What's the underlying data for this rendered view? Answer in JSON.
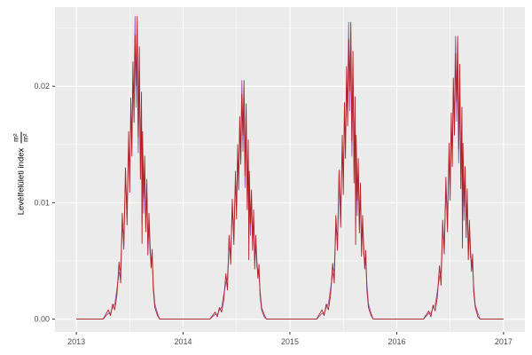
{
  "chart_data": {
    "type": "line",
    "title": "",
    "xlabel": "",
    "ylabel_text": "Levélfelületi index",
    "ylabel_fraction_numerator": "m²",
    "ylabel_fraction_denominator": "m²",
    "legend_position": "none",
    "grid": true,
    "xlim": [
      2012.8,
      2017.2
    ],
    "ylim": [
      -0.0011,
      0.0268
    ],
    "x_ticks": {
      "values": [
        2013,
        2014,
        2015,
        2016,
        2017
      ],
      "labels": [
        "2013",
        "2014",
        "2015",
        "2016",
        "2017"
      ]
    },
    "y_ticks": {
      "values": [
        0,
        0.01,
        0.02
      ],
      "labels": [
        "0.00",
        "0.01",
        "0.02"
      ]
    },
    "x_minor": [
      2013.5,
      2014.5,
      2015.5,
      2016.5
    ],
    "y_minor": [
      0.005,
      0.015,
      0.025
    ],
    "colors": {
      "figure_background": "#FFFFFF",
      "panel_background": "#EBEBEB",
      "grid": "#FFFFFF",
      "tick_label": "#4D4D4D",
      "tick_mark": "#333333",
      "axis_title": "#000000"
    },
    "x": [
      2013,
      2013.25,
      2013.3,
      2013.32,
      2013.34,
      2013.36,
      2013.38,
      2013.4,
      2013.415,
      2013.43,
      2013.445,
      2013.46,
      2013.475,
      2013.49,
      2013.5,
      2013.51,
      2013.52,
      2013.53,
      2013.54,
      2013.55,
      2013.56,
      2013.57,
      2013.58,
      2013.59,
      2013.6,
      2013.61,
      2013.615,
      2013.62,
      2013.63,
      2013.64,
      2013.65,
      2013.66,
      2013.67,
      2013.68,
      2013.69,
      2013.7,
      2013.71,
      2013.72,
      2013.735,
      2013.76,
      2013.78,
      2014,
      2014.25,
      2014.3,
      2014.32,
      2014.34,
      2014.36,
      2014.38,
      2014.4,
      2014.415,
      2014.43,
      2014.445,
      2014.46,
      2014.475,
      2014.49,
      2014.5,
      2014.51,
      2014.52,
      2014.53,
      2014.54,
      2014.55,
      2014.56,
      2014.57,
      2014.58,
      2014.59,
      2014.6,
      2014.61,
      2014.615,
      2014.62,
      2014.63,
      2014.64,
      2014.65,
      2014.66,
      2014.67,
      2014.68,
      2014.69,
      2014.7,
      2014.71,
      2014.72,
      2014.735,
      2014.76,
      2014.78,
      2015,
      2015.25,
      2015.3,
      2015.32,
      2015.34,
      2015.36,
      2015.38,
      2015.4,
      2015.415,
      2015.43,
      2015.445,
      2015.46,
      2015.475,
      2015.49,
      2015.5,
      2015.51,
      2015.52,
      2015.53,
      2015.54,
      2015.55,
      2015.56,
      2015.57,
      2015.58,
      2015.59,
      2015.6,
      2015.61,
      2015.615,
      2015.62,
      2015.63,
      2015.64,
      2015.65,
      2015.66,
      2015.67,
      2015.68,
      2015.69,
      2015.7,
      2015.71,
      2015.72,
      2015.735,
      2015.76,
      2015.78,
      2016,
      2016.25,
      2016.3,
      2016.32,
      2016.34,
      2016.36,
      2016.38,
      2016.4,
      2016.415,
      2016.43,
      2016.445,
      2016.46,
      2016.475,
      2016.49,
      2016.5,
      2016.51,
      2016.52,
      2016.53,
      2016.54,
      2016.55,
      2016.56,
      2016.57,
      2016.58,
      2016.59,
      2016.6,
      2016.61,
      2016.615,
      2016.62,
      2016.63,
      2016.64,
      2016.65,
      2016.66,
      2016.67,
      2016.68,
      2016.69,
      2016.7,
      2016.71,
      2016.72,
      2016.735,
      2016.76,
      2016.78,
      2017
    ],
    "series": [
      {
        "name": "series-purple",
        "color": "#9355B0",
        "values": [
          0,
          0,
          0.0005,
          0.0005,
          0.001,
          0.0013,
          0.0026,
          0.0039,
          0.0044,
          0.0078,
          0.0073,
          0.0117,
          0.0099,
          0.0148,
          0.0125,
          0.0177,
          0.0156,
          0.0208,
          0.0187,
          0.026,
          0.0182,
          0.0239,
          0.0143,
          0.0213,
          0.0135,
          0.0182,
          0.0083,
          0.0148,
          0.0091,
          0.013,
          0.0086,
          0.0109,
          0.0065,
          0.0081,
          0.0057,
          0.0052,
          0.0049,
          0.0031,
          0.0013,
          0.0005,
          0,
          0,
          0,
          0.0004,
          0.0004,
          0.0008,
          0.001,
          0.0021,
          0.0031,
          0.0035,
          0.0062,
          0.0057,
          0.0092,
          0.0078,
          0.0117,
          0.0098,
          0.0139,
          0.0123,
          0.0164,
          0.0148,
          0.0205,
          0.0144,
          0.0189,
          0.0113,
          0.0168,
          0.0107,
          0.0144,
          0.0066,
          0.0117,
          0.0072,
          0.0103,
          0.0068,
          0.0086,
          0.0051,
          0.0064,
          0.0045,
          0.0041,
          0.0039,
          0.0025,
          0.001,
          0.0004,
          0,
          0,
          0,
          0.0005,
          0.0005,
          0.001,
          0.0013,
          0.0026,
          0.0038,
          0.0043,
          0.0077,
          0.0071,
          0.0115,
          0.0097,
          0.0145,
          0.0122,
          0.0173,
          0.0153,
          0.0204,
          0.0184,
          0.0255,
          0.0179,
          0.0235,
          0.014,
          0.0209,
          0.0133,
          0.0179,
          0.0082,
          0.0145,
          0.0089,
          0.0128,
          0.0084,
          0.0107,
          0.0064,
          0.0079,
          0.0056,
          0.0051,
          0.0048,
          0.0031,
          0.0013,
          0.0005,
          0,
          0,
          0,
          0.0005,
          0.0005,
          0.001,
          0.0012,
          0.0024,
          0.0036,
          0.0041,
          0.0073,
          0.0068,
          0.0109,
          0.0092,
          0.0139,
          0.0117,
          0.0165,
          0.0146,
          0.0194,
          0.0175,
          0.0243,
          0.017,
          0.0224,
          0.0134,
          0.0199,
          0.0126,
          0.017,
          0.0078,
          0.0139,
          0.0085,
          0.0122,
          0.008,
          0.0102,
          0.0061,
          0.0073,
          0.0053,
          0.0049,
          0.0046,
          0.0029,
          0.0012,
          0.0005,
          0,
          0
        ]
      },
      {
        "name": "series-red",
        "color": "#B22222",
        "values": [
          0,
          0,
          0.0008,
          0.0003,
          0.0013,
          0.0008,
          0.0021,
          0.0049,
          0.0031,
          0.0091,
          0.006,
          0.013,
          0.0081,
          0.0161,
          0.0109,
          0.019,
          0.014,
          0.0221,
          0.0169,
          0.0244,
          0.02,
          0.026,
          0.0156,
          0.0234,
          0.012,
          0.0195,
          0.0065,
          0.0161,
          0.0104,
          0.014,
          0.0075,
          0.012,
          0.0055,
          0.0091,
          0.0065,
          0.0044,
          0.006,
          0.0026,
          0.001,
          0.0003,
          0,
          0,
          0,
          0.0006,
          0.0002,
          0.001,
          0.0006,
          0.0016,
          0.0039,
          0.0025,
          0.0072,
          0.0047,
          0.0103,
          0.0064,
          0.0127,
          0.0086,
          0.015,
          0.0111,
          0.0174,
          0.0133,
          0.0193,
          0.0158,
          0.0205,
          0.0123,
          0.0185,
          0.0094,
          0.0154,
          0.0051,
          0.0127,
          0.0082,
          0.0111,
          0.0059,
          0.0094,
          0.0043,
          0.0072,
          0.0051,
          0.0035,
          0.0047,
          0.0021,
          0.0008,
          0.0002,
          0,
          0,
          0,
          0.0008,
          0.0003,
          0.0013,
          0.0008,
          0.002,
          0.0048,
          0.0031,
          0.0089,
          0.0059,
          0.0128,
          0.0079,
          0.0158,
          0.0107,
          0.0186,
          0.0138,
          0.0217,
          0.0166,
          0.024,
          0.0196,
          0.0255,
          0.0153,
          0.023,
          0.0117,
          0.0191,
          0.0064,
          0.0158,
          0.0102,
          0.0138,
          0.0074,
          0.0117,
          0.0054,
          0.0089,
          0.0064,
          0.0043,
          0.0059,
          0.0026,
          0.001,
          0.0003,
          0,
          0,
          0,
          0.0007,
          0.0002,
          0.0012,
          0.0007,
          0.0019,
          0.0046,
          0.0029,
          0.0085,
          0.0056,
          0.0122,
          0.0075,
          0.0151,
          0.0102,
          0.0177,
          0.0131,
          0.0207,
          0.0158,
          0.0228,
          0.0187,
          0.0243,
          0.0146,
          0.0219,
          0.0112,
          0.0182,
          0.0061,
          0.0151,
          0.0097,
          0.0131,
          0.007,
          0.0112,
          0.0051,
          0.0085,
          0.0061,
          0.0041,
          0.0056,
          0.0024,
          0.001,
          0.0002,
          0,
          0
        ]
      }
    ]
  }
}
